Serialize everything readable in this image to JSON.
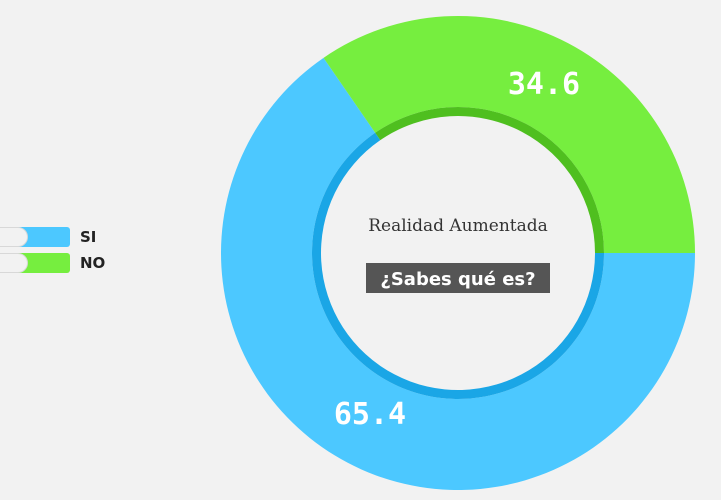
{
  "chart_data": {
    "type": "pie",
    "variant": "donut",
    "title": "Realidad Aumentada",
    "subtitle": "¿Sabes qué es?",
    "categories": [
      "SI",
      "NO"
    ],
    "values": [
      65.4,
      34.6
    ],
    "colors": [
      "#4cc8ff",
      "#76ee3f"
    ],
    "inner_colors": [
      "#1aa6e6",
      "#4fbf1f"
    ],
    "legend_placement": "left"
  }
}
